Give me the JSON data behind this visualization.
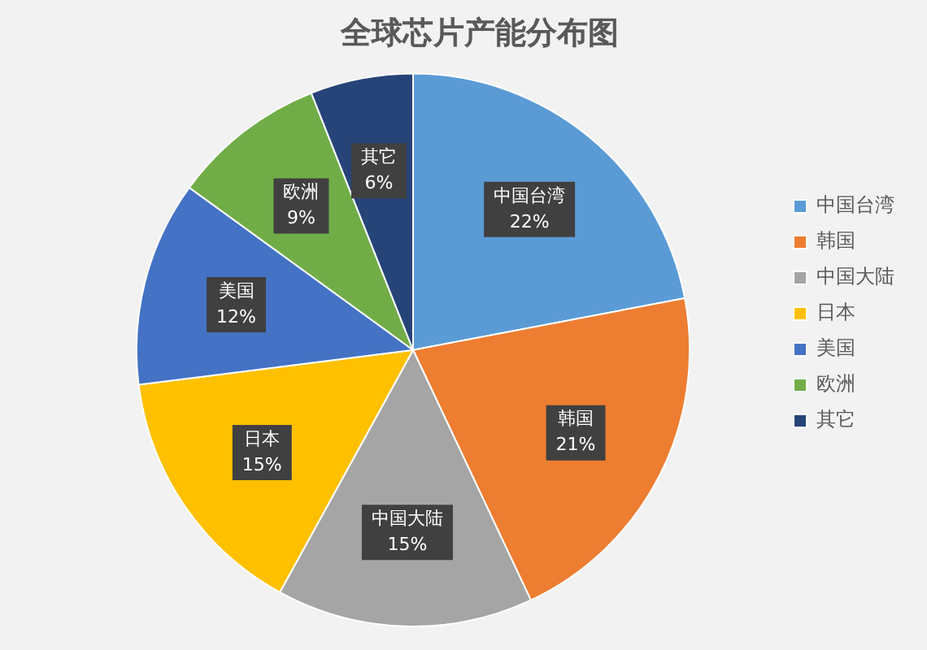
{
  "chart_data": {
    "type": "pie",
    "title": "全球芯片产能分布图",
    "categories": [
      "中国台湾",
      "韩国",
      "中国大陆",
      "日本",
      "美国",
      "欧洲",
      "其它"
    ],
    "values": [
      22,
      21,
      15,
      15,
      12,
      9,
      6
    ],
    "value_labels": [
      "22%",
      "21%",
      "15%",
      "15%",
      "12%",
      "9%",
      "6%"
    ],
    "colors": [
      "#5b9bd5",
      "#ed7d31",
      "#a5a5a5",
      "#ffc000",
      "#4472c4",
      "#70ad47",
      "#264478"
    ],
    "legend": "right"
  }
}
